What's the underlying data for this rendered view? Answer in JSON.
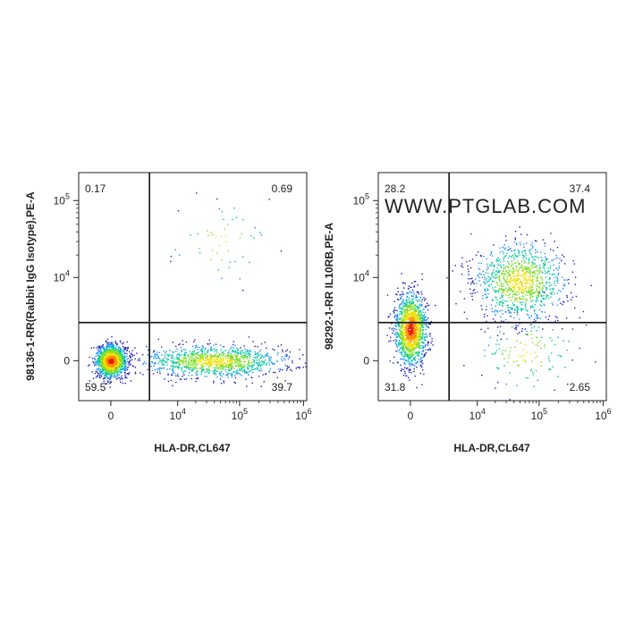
{
  "watermark": "WWW.PTGLAB.COM",
  "chart_data": [
    {
      "type": "scatter",
      "subtype": "flow-cytometry-density-dot-plot",
      "title": "",
      "xlabel": "HLA-DR,CL647",
      "ylabel": "98136-1-RR(Rabbit IgG Isotype),PE-A",
      "x_scale": "biexponential",
      "y_scale": "biexponential",
      "x_ticks": [
        {
          "value": 0,
          "base": "0",
          "exp": ""
        },
        {
          "value": 10000,
          "base": "10",
          "exp": "4"
        },
        {
          "value": 100000,
          "base": "10",
          "exp": "5"
        },
        {
          "value": 1000000,
          "base": "10",
          "exp": "6"
        }
      ],
      "y_ticks": [
        {
          "value": 0,
          "base": "0",
          "exp": ""
        },
        {
          "value": 10000,
          "base": "10",
          "exp": "4"
        },
        {
          "value": 100000,
          "base": "10",
          "exp": "5"
        }
      ],
      "quadrant_gates": {
        "x": 3000,
        "y": 2000
      },
      "quadrants": {
        "upper_left": "0.17",
        "upper_right": "0.69",
        "lower_left": "59.5",
        "lower_right": "39.7"
      },
      "populations": [
        {
          "name": "",
          "x_center": 0,
          "y_center": 0,
          "share": 0.55
        },
        {
          "name": "",
          "x_center": 40000,
          "y_center": 0,
          "share": 0.43
        },
        {
          "name": "",
          "x_center": 50000,
          "y_center": 30000,
          "share": 0.02
        }
      ],
      "colormap": [
        "#1f1fb4",
        "#1e90ff",
        "#00c8a0",
        "#7fdc28",
        "#f0e000",
        "#ff8c00",
        "#e8190e"
      ]
    },
    {
      "type": "scatter",
      "subtype": "flow-cytometry-density-dot-plot",
      "title": "",
      "xlabel": "HLA-DR,CL647",
      "ylabel": "98292-1-RR IL10RB,PE-A",
      "x_scale": "biexponential",
      "y_scale": "biexponential",
      "x_ticks": [
        {
          "value": 0,
          "base": "0",
          "exp": ""
        },
        {
          "value": 10000,
          "base": "10",
          "exp": "4"
        },
        {
          "value": 100000,
          "base": "10",
          "exp": "5"
        },
        {
          "value": 1000000,
          "base": "10",
          "exp": "6"
        }
      ],
      "y_ticks": [
        {
          "value": 0,
          "base": "0",
          "exp": ""
        },
        {
          "value": 10000,
          "base": "10",
          "exp": "4"
        },
        {
          "value": 100000,
          "base": "10",
          "exp": "5"
        }
      ],
      "quadrant_gates": {
        "x": 3000,
        "y": 2000
      },
      "quadrants": {
        "upper_left": "28.2",
        "upper_right": "37.4",
        "lower_left": "31.8",
        "lower_right": "2.65"
      },
      "populations": [
        {
          "name": "",
          "x_center": 0,
          "y_center": 1500,
          "share": 0.55
        },
        {
          "name": "",
          "x_center": 50000,
          "y_center": 9000,
          "share": 0.4
        },
        {
          "name": "",
          "x_center": 60000,
          "y_center": 300,
          "share": 0.05
        }
      ],
      "colormap": [
        "#1f1fb4",
        "#1e90ff",
        "#00c8a0",
        "#7fdc28",
        "#f0e000",
        "#ff8c00",
        "#e8190e"
      ]
    }
  ]
}
